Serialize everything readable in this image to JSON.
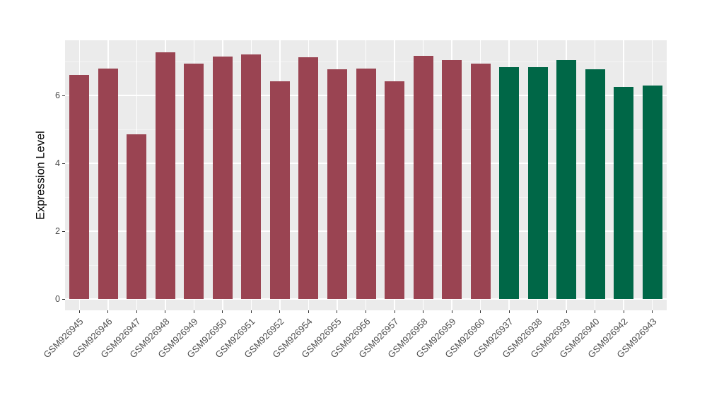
{
  "chart_data": {
    "type": "bar",
    "title": "",
    "xlabel": "",
    "ylabel": "Expression Level",
    "legend": "none",
    "grid": "on",
    "panel_bg": "#EBEBEB",
    "major_grid_color": "#FFFFFF",
    "minor_grid_color": "#F4F4F4",
    "axis_text_color": "#4D4D4D",
    "tick_mark_color": "#333333",
    "y_ticks": [
      0,
      2,
      4,
      6
    ],
    "y_minor_gridlines": [
      1,
      3,
      5,
      7
    ],
    "ylim": [
      -0.33,
      7.63
    ],
    "group_colors": {
      "maroon": "#9A4452",
      "green": "#006747"
    },
    "bars": [
      {
        "label": "GSM926945",
        "value": 6.6,
        "group": "maroon"
      },
      {
        "label": "GSM926946",
        "value": 6.8,
        "group": "maroon"
      },
      {
        "label": "GSM926947",
        "value": 4.85,
        "group": "maroon"
      },
      {
        "label": "GSM926948",
        "value": 7.27,
        "group": "maroon"
      },
      {
        "label": "GSM926949",
        "value": 6.95,
        "group": "maroon"
      },
      {
        "label": "GSM926950",
        "value": 7.15,
        "group": "maroon"
      },
      {
        "label": "GSM926951",
        "value": 7.21,
        "group": "maroon"
      },
      {
        "label": "GSM926952",
        "value": 6.42,
        "group": "maroon"
      },
      {
        "label": "GSM926954",
        "value": 7.13,
        "group": "maroon"
      },
      {
        "label": "GSM926955",
        "value": 6.77,
        "group": "maroon"
      },
      {
        "label": "GSM926956",
        "value": 6.79,
        "group": "maroon"
      },
      {
        "label": "GSM926957",
        "value": 6.42,
        "group": "maroon"
      },
      {
        "label": "GSM926958",
        "value": 7.17,
        "group": "maroon"
      },
      {
        "label": "GSM926959",
        "value": 7.04,
        "group": "maroon"
      },
      {
        "label": "GSM926960",
        "value": 6.94,
        "group": "maroon"
      },
      {
        "label": "GSM926937",
        "value": 6.83,
        "group": "green"
      },
      {
        "label": "GSM926938",
        "value": 6.83,
        "group": "green"
      },
      {
        "label": "GSM926939",
        "value": 7.04,
        "group": "green"
      },
      {
        "label": "GSM926940",
        "value": 6.77,
        "group": "green"
      },
      {
        "label": "GSM926942",
        "value": 6.25,
        "group": "green"
      },
      {
        "label": "GSM926943",
        "value": 6.29,
        "group": "green"
      }
    ]
  }
}
